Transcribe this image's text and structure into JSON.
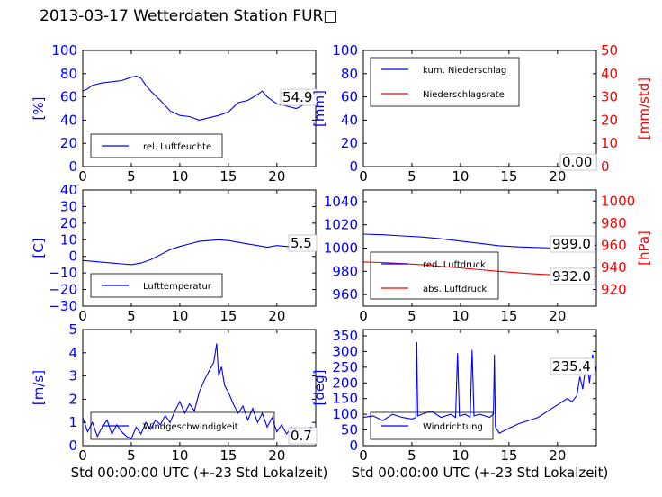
{
  "title": "2013-03-17 Wetterdaten Station FUR□",
  "colors": {
    "blue": "#0000ff",
    "red": "#ff0000",
    "light_blue": "#7f7fff",
    "black": "#000000"
  },
  "chart_data": [
    {
      "type": "line",
      "title": "",
      "xlabel": "",
      "ylabel": "[%]",
      "xlim": [
        0,
        24
      ],
      "ylim": [
        0,
        100
      ],
      "xticks": [
        "0",
        "5",
        "10",
        "15",
        "20"
      ],
      "yticks": [
        "0",
        "20",
        "40",
        "60",
        "80",
        "100"
      ],
      "legend_position": "lower-left",
      "current_value": "54.9",
      "series": [
        {
          "name": "rel. Luftfeuchte",
          "color": "blue",
          "x": [
            0,
            0.5,
            1,
            2,
            3,
            4,
            5,
            5.5,
            6,
            6.5,
            7,
            8,
            9,
            10,
            11,
            12,
            13,
            14,
            15,
            16,
            17,
            18,
            18.5,
            19,
            20,
            21,
            22,
            23,
            24
          ],
          "y": [
            65,
            67,
            70,
            72,
            73,
            74,
            77,
            78,
            76,
            70,
            65,
            57,
            48,
            44,
            43,
            40,
            42,
            44,
            47,
            55,
            57,
            62,
            65,
            60,
            54,
            52,
            50,
            54,
            55
          ]
        }
      ]
    },
    {
      "type": "line",
      "title": "",
      "xlabel": "",
      "ylabel": "[mm]",
      "ylabel_right": "[mm/std]",
      "xlim": [
        0,
        24
      ],
      "ylim": [
        0,
        100
      ],
      "ylim_right": [
        0,
        50
      ],
      "xticks": [
        "0",
        "5",
        "10",
        "15",
        "20"
      ],
      "yticks": [
        "0",
        "20",
        "40",
        "60",
        "80",
        "100"
      ],
      "yticks_right": [
        "0",
        "10",
        "20",
        "30",
        "40",
        "50"
      ],
      "legend_position": "upper-left",
      "current_value": "0.00",
      "series": [
        {
          "name": "kum. Niederschlag",
          "color": "blue",
          "axis": "left",
          "x": [
            0,
            24
          ],
          "y": [
            0,
            0
          ]
        },
        {
          "name": "Niederschlagsrate",
          "color": "red",
          "axis": "right",
          "x": [
            0,
            24
          ],
          "y": [
            0,
            0
          ]
        }
      ]
    },
    {
      "type": "line",
      "title": "",
      "xlabel": "",
      "ylabel": "[C]",
      "xlim": [
        0,
        24
      ],
      "ylim": [
        -30,
        40
      ],
      "xticks": [
        "0",
        "5",
        "10",
        "15",
        "20"
      ],
      "yticks": [
        "−30",
        "−20",
        "−10",
        "0",
        "10",
        "20",
        "30",
        "40"
      ],
      "legend_position": "lower-left",
      "current_value": "5.5",
      "series": [
        {
          "name": "Lufttemperatur",
          "color": "blue",
          "x": [
            0,
            1,
            2,
            3,
            4,
            5,
            6,
            7,
            8,
            9,
            10,
            11,
            12,
            13,
            14,
            15,
            16,
            17,
            18,
            19,
            20,
            21,
            22,
            23,
            24
          ],
          "y": [
            -2.5,
            -3,
            -3.5,
            -4,
            -4.5,
            -5,
            -4,
            -2,
            1,
            4,
            6,
            7.5,
            9,
            9.5,
            10,
            9.5,
            8.5,
            7.5,
            6.5,
            5.5,
            6.5,
            6,
            5.5,
            5.5,
            5.5
          ]
        }
      ]
    },
    {
      "type": "line",
      "title": "",
      "xlabel": "",
      "ylabel": "",
      "ylabel_right": "[hPa]",
      "xlim": [
        0,
        24
      ],
      "ylim": [
        950,
        1050
      ],
      "ylim_right": [
        905,
        1010
      ],
      "xticks": [
        "0",
        "5",
        "10",
        "15",
        "20"
      ],
      "yticks": [
        "960",
        "980",
        "1000",
        "1020",
        "1040"
      ],
      "yticks_right": [
        "920",
        "940",
        "960",
        "980",
        "1000"
      ],
      "legend_position": "lower-left",
      "current_values": [
        "999.0",
        "932.0"
      ],
      "series": [
        {
          "name": "red. Luftdruck",
          "color": "blue",
          "axis": "left",
          "x": [
            0,
            2,
            4,
            6,
            8,
            10,
            12,
            14,
            16,
            18,
            20,
            22,
            24
          ],
          "y": [
            1012,
            1011.5,
            1010.5,
            1009.5,
            1008,
            1006,
            1004,
            1002,
            1001,
            1000.5,
            1000,
            999.5,
            999
          ]
        },
        {
          "name": "abs. Luftdruck",
          "color": "red",
          "axis": "right",
          "x": [
            0,
            2,
            4,
            6,
            8,
            10,
            12,
            14,
            16,
            18,
            20,
            22,
            24
          ],
          "y": [
            945,
            944.5,
            943.5,
            942.5,
            941,
            939.5,
            938,
            936.5,
            935,
            934,
            933,
            932.5,
            932
          ]
        }
      ]
    },
    {
      "type": "line",
      "title": "",
      "xlabel": "Std 00:00:00 UTC (+-23 Std Lokalzeit)",
      "ylabel": "[m/s]",
      "xlim": [
        0,
        24
      ],
      "ylim": [
        0,
        5
      ],
      "xticks": [
        "0",
        "5",
        "10",
        "15",
        "20"
      ],
      "yticks": [
        "0",
        "1",
        "2",
        "3",
        "4",
        "5"
      ],
      "legend_position": "lower-left",
      "current_value": "0.7",
      "series": [
        {
          "name": "Windgeschwindigkeit",
          "color": "blue",
          "x": [
            0,
            0.5,
            1,
            1.5,
            2,
            2.5,
            3,
            3.5,
            4,
            4.5,
            5,
            5.5,
            6,
            6.5,
            7,
            7.5,
            8,
            8.5,
            9,
            9.5,
            10,
            10.5,
            11,
            11.5,
            12,
            12.5,
            13,
            13.5,
            13.8,
            14,
            14.3,
            14.6,
            15,
            15.5,
            16,
            16.5,
            17,
            17.5,
            18,
            18.5,
            19,
            19.5,
            20,
            20.5,
            21,
            21.5,
            22,
            22.5,
            23,
            23.5,
            24
          ],
          "y": [
            1.2,
            0.6,
            1.0,
            0.4,
            0.8,
            1.1,
            0.5,
            0.9,
            0.6,
            0.4,
            0.3,
            0.8,
            0.5,
            1.0,
            0.7,
            1.1,
            0.9,
            1.3,
            1.0,
            1.5,
            1.9,
            1.4,
            1.8,
            1.5,
            2.3,
            2.8,
            3.2,
            3.6,
            4.4,
            3.0,
            3.4,
            2.6,
            2.3,
            1.8,
            1.4,
            1.7,
            1.1,
            1.6,
            1.0,
            1.4,
            0.8,
            1.2,
            0.6,
            0.9,
            0.5,
            0.8,
            0.3,
            0.6,
            0.5,
            0.8,
            0.7
          ]
        }
      ]
    },
    {
      "type": "line",
      "title": "",
      "xlabel": "Std 00:00:00 UTC (+-23 Std Lokalzeit)",
      "ylabel": "[deg]",
      "xlim": [
        0,
        24
      ],
      "ylim": [
        0,
        370
      ],
      "xticks": [
        "0",
        "5",
        "10",
        "15",
        "20"
      ],
      "yticks": [
        "0",
        "50",
        "100",
        "150",
        "200",
        "250",
        "300",
        "350"
      ],
      "legend_position": "lower-left",
      "current_value": "235.4",
      "series": [
        {
          "name": "Windrichtung",
          "color": "blue",
          "x": [
            0,
            1,
            2,
            3,
            4,
            5,
            5.4,
            5.5,
            5.6,
            6,
            7,
            8,
            9,
            9.5,
            9.7,
            9.9,
            10.5,
            11,
            11.2,
            11.4,
            12,
            12.5,
            13,
            13.4,
            13.5,
            13.6,
            14,
            15,
            16,
            17,
            18,
            19,
            20,
            21,
            21.5,
            22,
            22.3,
            22.6,
            23,
            23.3,
            23.6,
            24
          ],
          "y": [
            90,
            95,
            80,
            100,
            90,
            85,
            90,
            330,
            95,
            100,
            110,
            90,
            100,
            90,
            295,
            95,
            100,
            90,
            305,
            95,
            100,
            95,
            90,
            100,
            290,
            60,
            40,
            55,
            70,
            80,
            90,
            110,
            130,
            150,
            140,
            160,
            220,
            180,
            280,
            200,
            290,
            235
          ]
        }
      ]
    }
  ]
}
